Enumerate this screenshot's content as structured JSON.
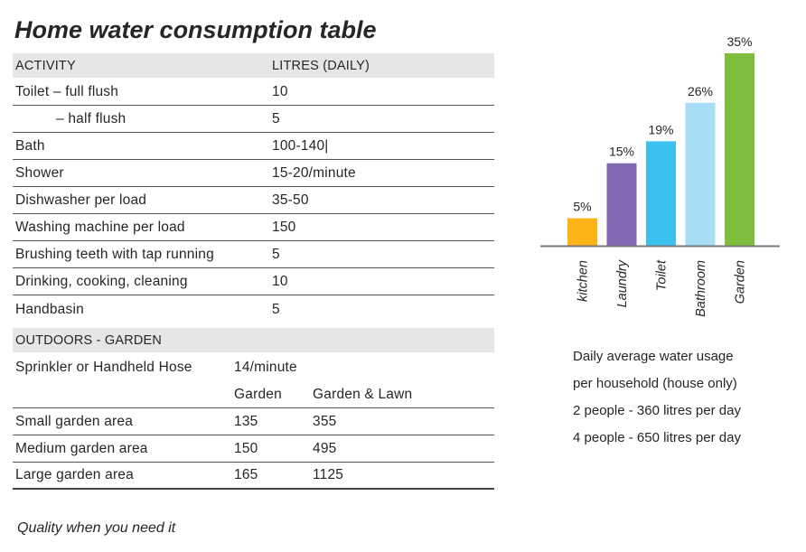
{
  "title": "Home water consumption table",
  "table": {
    "header": {
      "activity": "ACTIVITY",
      "litres": "LITRES (DAILY)"
    },
    "rows": [
      {
        "activity": "Toilet – full flush",
        "litres": "10"
      },
      {
        "activity": "– half flush",
        "litres": "5"
      },
      {
        "activity": "Bath",
        "litres": "100-140|"
      },
      {
        "activity": "Shower",
        "litres": "15-20/minute"
      },
      {
        "activity": "Dishwasher per load",
        "litres": "35-50"
      },
      {
        "activity": "Washing machine per load",
        "litres": "150"
      },
      {
        "activity": "Brushing teeth with tap running",
        "litres": "5"
      },
      {
        "activity": "Drinking, cooking, cleaning",
        "litres": "10"
      },
      {
        "activity": "Handbasin",
        "litres": "5"
      }
    ]
  },
  "outdoors": {
    "header": "OUTDOORS - GARDEN",
    "sprinkler": {
      "label": "Sprinkler or Handheld Hose",
      "value": "14/minute"
    },
    "columns": {
      "garden": "Garden",
      "garden_lawn": "Garden & Lawn"
    },
    "rows": [
      {
        "area": "Small garden area",
        "garden": "135",
        "garden_lawn": "355"
      },
      {
        "area": "Medium garden area",
        "garden": "150",
        "garden_lawn": "495"
      },
      {
        "area": "Large garden area",
        "garden": "165",
        "garden_lawn": "1125"
      }
    ]
  },
  "tagline": "Quality when you need it",
  "chart_data": {
    "type": "bar",
    "categories": [
      "kitchen",
      "Laundry",
      "Toilet",
      "Bathroom",
      "Garden"
    ],
    "values": [
      5,
      15,
      19,
      26,
      35
    ],
    "value_labels": [
      "5%",
      "15%",
      "19%",
      "26%",
      "35%"
    ],
    "colors": [
      "#fbb316",
      "#8168b2",
      "#3cc0ee",
      "#a8ddf6",
      "#7ebe3c"
    ],
    "ylim": [
      0,
      35
    ]
  },
  "usage_note": {
    "line1": "Daily average water usage",
    "line2": "per household (house only)",
    "line3": "2 people - 360 litres per day",
    "line4": "4 people - 650 litres per day"
  }
}
